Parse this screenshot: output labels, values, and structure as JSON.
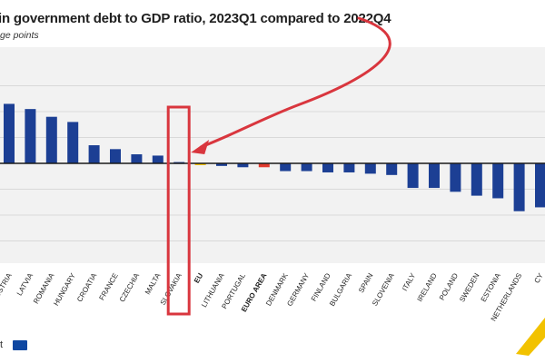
{
  "header": {
    "title": "in government debt to GDP ratio, 2023Q1 compared to 2022Q4",
    "subtitle": "ge points"
  },
  "footer": {
    "source": "t"
  },
  "colors": {
    "bar": "#1c3f94",
    "eu": "#f2c200",
    "euro_area": "#e03a2e",
    "gridline": "#d9d9d9",
    "axis": "#1a1a1a",
    "highlight": "#d9363e",
    "page_background": "#ffffff",
    "plot_background": "#f2f2f2",
    "corner_accent": "#f2c200"
  },
  "chart_data": {
    "type": "bar",
    "title": "in government debt to GDP ratio, 2023Q1 compared to 2022Q4",
    "ylabel": "ge points",
    "xlabel": "",
    "gridlines": true,
    "ylim": [
      -3,
      3
    ],
    "categories": [
      "AUSTRIA",
      "LATVIA",
      "ROMANIA",
      "HUNGARY",
      "CROATIA",
      "FRANCE",
      "CZECHIA",
      "MALTA",
      "SLOVAKIA",
      "EU",
      "LITHUANIA",
      "PORTUGAL",
      "EURO AREA",
      "DENMARK",
      "GERMANY",
      "FINLAND",
      "BULGARIA",
      "SPAIN",
      "SLOVENIA",
      "ITALY",
      "IRELAND",
      "POLAND",
      "SWEDEN",
      "ESTONIA",
      "NETHERLANDS",
      "CY"
    ],
    "values": [
      2.3,
      2.1,
      1.8,
      1.6,
      0.7,
      0.55,
      0.35,
      0.3,
      0.05,
      -0.05,
      -0.1,
      -0.15,
      -0.15,
      -0.3,
      -0.3,
      -0.35,
      -0.35,
      -0.4,
      -0.45,
      -0.95,
      -0.95,
      -1.1,
      -1.25,
      -1.35,
      -1.85,
      -1.7
    ],
    "bold_categories": [
      "EU",
      "EURO AREA"
    ],
    "highlighted_category": "SLOVAKIA"
  }
}
